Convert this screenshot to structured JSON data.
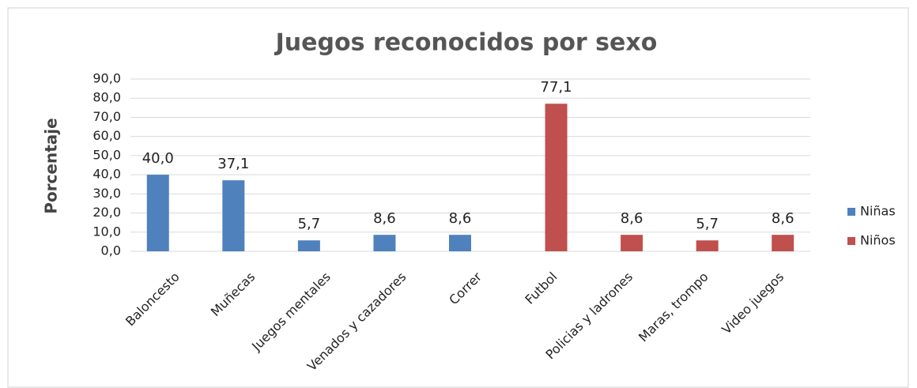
{
  "chart_data": {
    "type": "bar",
    "title": "Juegos reconocidos por sexo",
    "y_label": "Porcentaje",
    "categories": [
      "Baloncesto",
      "Muñecas",
      "Juegos mentales",
      "Venados y cazadores",
      "Correr",
      "Futbol",
      "Policias y ladrones",
      "Maras, trompo",
      "Video juegos"
    ],
    "series": [
      {
        "name": "Niñas",
        "color": "#4f81bd",
        "values": [
          40.0,
          37.1,
          5.7,
          8.6,
          8.6,
          null,
          null,
          null,
          null
        ],
        "value_labels": [
          "40,0",
          "37,1",
          "5,7",
          "8,6",
          "8,6",
          null,
          null,
          null,
          null
        ]
      },
      {
        "name": "Niños",
        "color": "#c0504d",
        "values": [
          null,
          null,
          null,
          null,
          null,
          77.1,
          8.6,
          5.7,
          8.6
        ],
        "value_labels": [
          null,
          null,
          null,
          null,
          null,
          "77,1",
          "8,6",
          "5,7",
          "8,6"
        ]
      }
    ],
    "ylim": [
      0,
      90
    ],
    "yticks": [
      {
        "value": 0,
        "label": "0,0"
      },
      {
        "value": 10,
        "label": "10,0"
      },
      {
        "value": 20,
        "label": "20,0"
      },
      {
        "value": 30,
        "label": "30,0"
      },
      {
        "value": 40,
        "label": "40,0"
      },
      {
        "value": 50,
        "label": "50,0"
      },
      {
        "value": 60,
        "label": "60,0"
      },
      {
        "value": 70,
        "label": "70,0"
      },
      {
        "value": 80,
        "label": "80,0"
      },
      {
        "value": 90,
        "label": "90,0"
      }
    ],
    "grid": true,
    "legend": "right"
  }
}
